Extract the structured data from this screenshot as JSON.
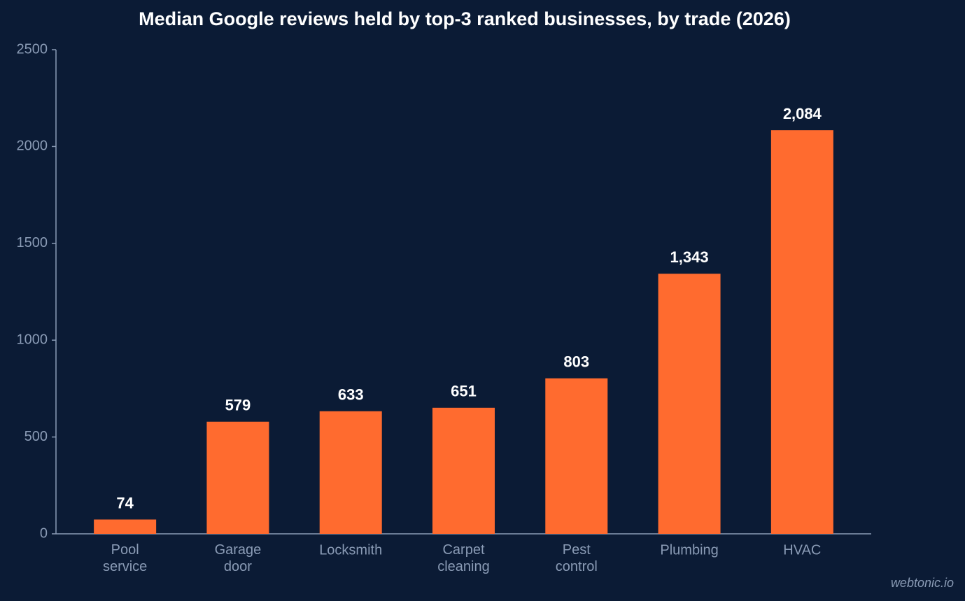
{
  "chart_data": {
    "type": "bar",
    "title": "Median Google reviews held by top-3 ranked businesses, by trade (2026)",
    "categories": [
      "Pool service",
      "Garage door",
      "Locksmith",
      "Carpet cleaning",
      "Pest control",
      "Plumbing",
      "HVAC"
    ],
    "values": [
      74,
      579,
      633,
      651,
      803,
      1343,
      2084
    ],
    "value_labels": [
      "74",
      "579",
      "633",
      "651",
      "803",
      "1,343",
      "2,084"
    ],
    "color": "#ff6b2f",
    "ylim": [
      0,
      2500
    ],
    "yticks": [
      0,
      500,
      1000,
      1500,
      2000,
      2500
    ],
    "grid": false,
    "watermark": "webtonic.io"
  }
}
